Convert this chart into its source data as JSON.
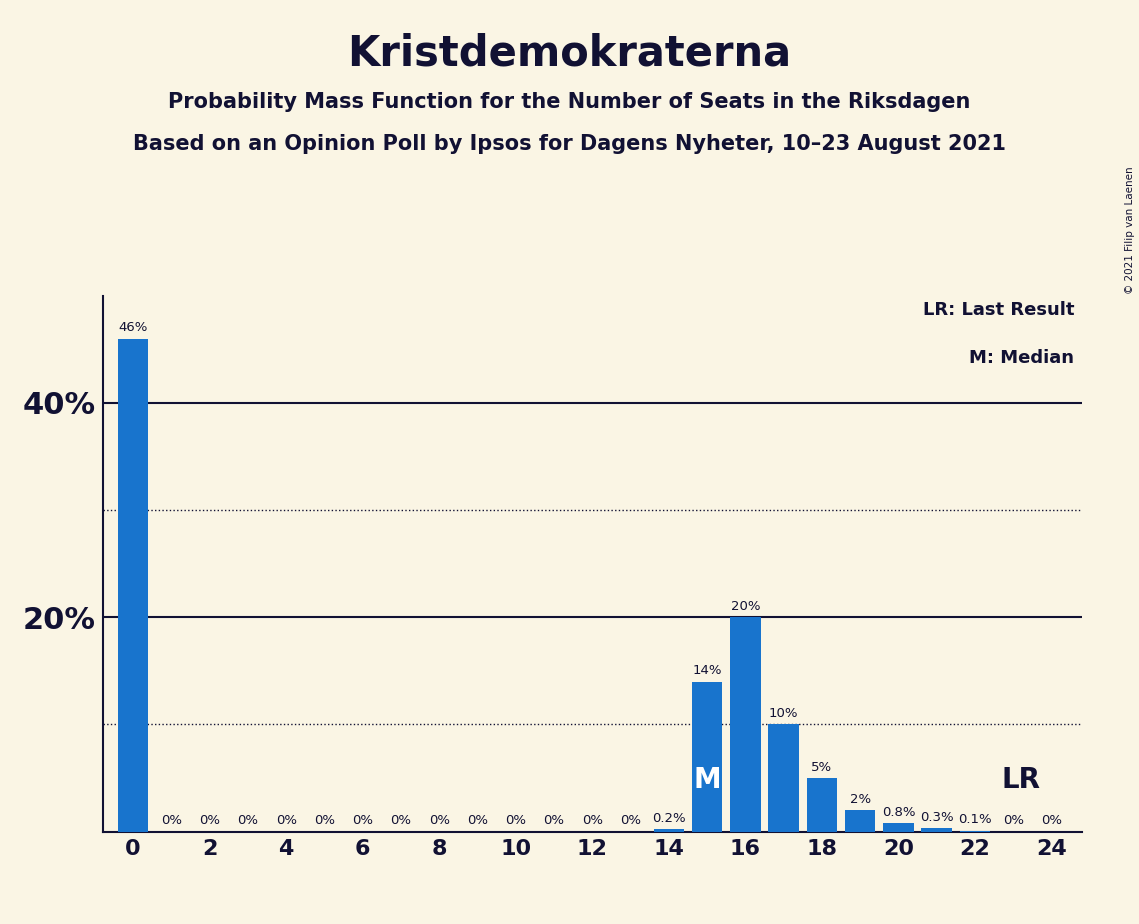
{
  "title": "Kristdemokraterna",
  "subtitle1": "Probability Mass Function for the Number of Seats in the Riksdagen",
  "subtitle2": "Based on an Opinion Poll by Ipsos for Dagens Nyheter, 10–23 August 2021",
  "copyright": "© 2021 Filip van Laenen",
  "seats": [
    0,
    1,
    2,
    3,
    4,
    5,
    6,
    7,
    8,
    9,
    10,
    11,
    12,
    13,
    14,
    15,
    16,
    17,
    18,
    19,
    20,
    21,
    22,
    23,
    24
  ],
  "probabilities": [
    46,
    0,
    0,
    0,
    0,
    0,
    0,
    0,
    0,
    0,
    0,
    0,
    0,
    0,
    0.2,
    14,
    20,
    10,
    5,
    2,
    0.8,
    0.3,
    0.1,
    0,
    0
  ],
  "bar_color": "#1874CD",
  "background_color": "#FAF5E4",
  "median_seat": 15,
  "lr_seat": 21,
  "legend_lr": "LR: Last Result",
  "legend_m": "M: Median",
  "ylim": [
    0,
    50
  ],
  "solid_gridlines": [
    20,
    40
  ],
  "dotted_gridlines": [
    10,
    30
  ],
  "title_fontsize": 30,
  "subtitle_fontsize": 15,
  "text_color": "#111133"
}
